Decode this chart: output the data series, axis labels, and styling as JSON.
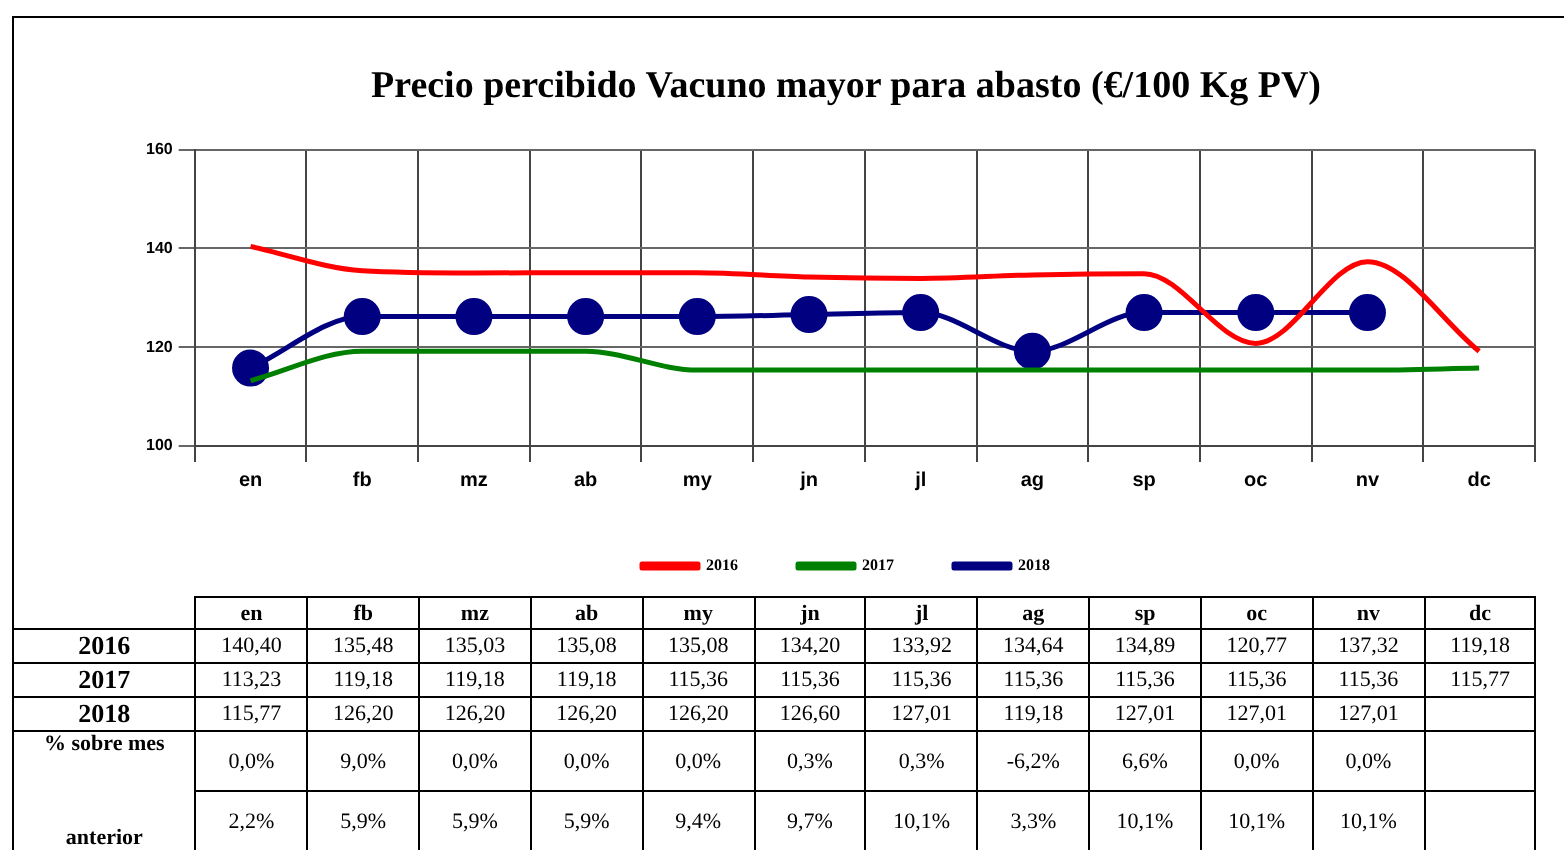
{
  "chart_data": {
    "type": "line",
    "title": "Precio percibido Vacuno mayor para abasto (€/100 Kg PV)",
    "categories": [
      "en",
      "fb",
      "mz",
      "ab",
      "my",
      "jn",
      "jl",
      "ag",
      "sp",
      "oc",
      "nv",
      "dc"
    ],
    "series": [
      {
        "name": "2016",
        "color": "#ff0000",
        "marker": "none",
        "values": [
          140.4,
          135.48,
          135.03,
          135.08,
          135.08,
          134.2,
          133.92,
          134.64,
          134.89,
          120.77,
          137.32,
          119.18
        ],
        "value_labels": [
          "140,40",
          "135,48",
          "135,03",
          "135,08",
          "135,08",
          "134,20",
          "133,92",
          "134,64",
          "134,89",
          "120,77",
          "137,32",
          "119,18"
        ]
      },
      {
        "name": "2017",
        "color": "#008000",
        "marker": "none",
        "values": [
          113.23,
          119.18,
          119.18,
          119.18,
          115.36,
          115.36,
          115.36,
          115.36,
          115.36,
          115.36,
          115.36,
          115.77
        ],
        "value_labels": [
          "113,23",
          "119,18",
          "119,18",
          "119,18",
          "115,36",
          "115,36",
          "115,36",
          "115,36",
          "115,36",
          "115,36",
          "115,36",
          "115,77"
        ]
      },
      {
        "name": "2018",
        "color": "#000080",
        "marker": "circle",
        "values": [
          115.77,
          126.2,
          126.2,
          126.2,
          126.2,
          126.6,
          127.01,
          119.18,
          127.01,
          127.01,
          127.01,
          null
        ],
        "value_labels": [
          "115,77",
          "126,20",
          "126,20",
          "126,20",
          "126,20",
          "126,60",
          "127,01",
          "119,18",
          "127,01",
          "127,01",
          "127,01",
          null
        ]
      }
    ],
    "ylim": [
      100,
      160
    ],
    "yticks": [
      100,
      120,
      140,
      160
    ],
    "grid": true,
    "legend": "bottom",
    "annotations": [
      "% sobre mes",
      "anterior",
      "0,0%",
      "9,0%",
      "0,0%",
      "0,0%",
      "0,0%",
      "0,3%",
      "0,3%",
      "-6,2%",
      "6,6%",
      "0,0%",
      "0,0%",
      "2,2%",
      "5,9%",
      "5,9%",
      "5,9%",
      "9,4%",
      "9,7%",
      "10,1%",
      "3,3%",
      "10,1%",
      "10,1%",
      "10,1%"
    ]
  }
}
